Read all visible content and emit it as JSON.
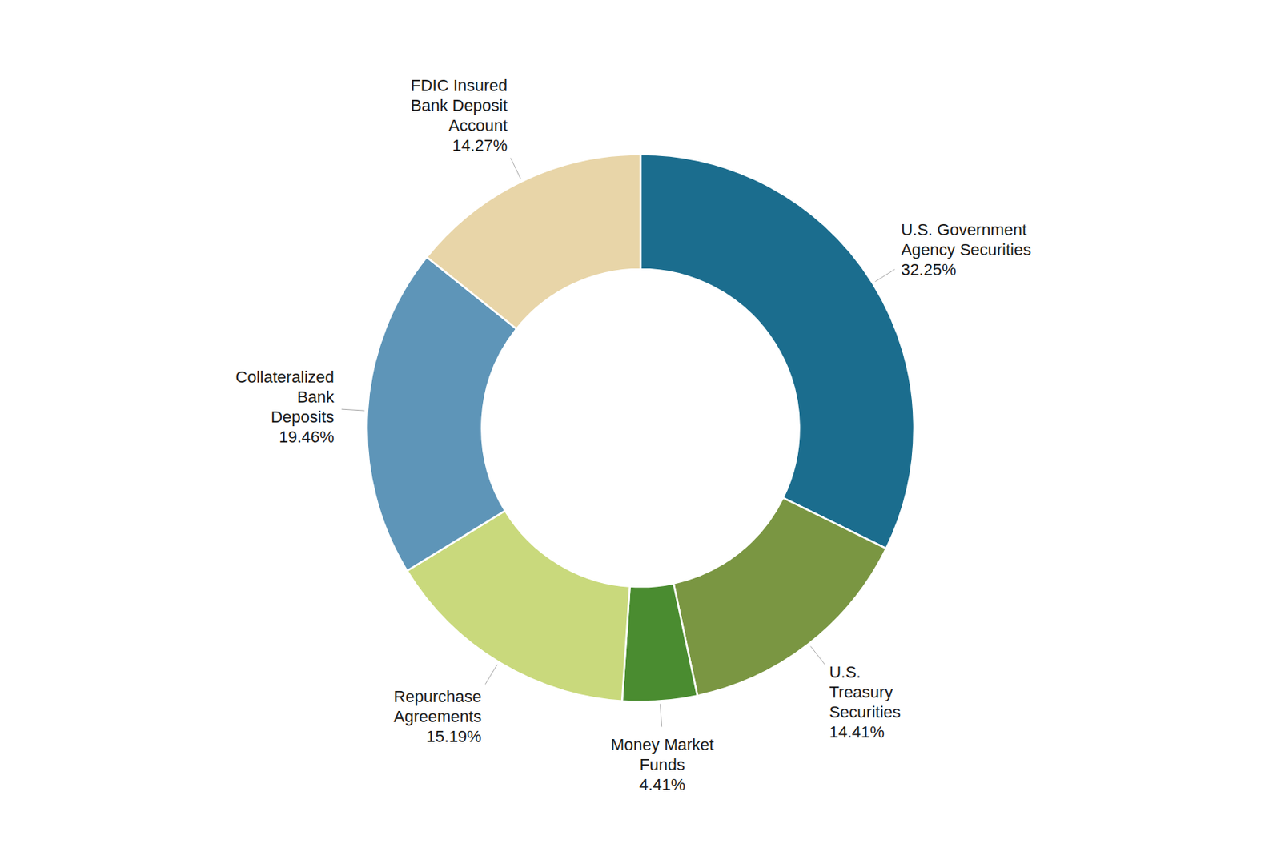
{
  "chart_data": {
    "type": "donut",
    "categories": [
      "U.S. Government\nAgency Securities",
      "U.S.\nTreasury\nSecurities",
      "Money Market\nFunds",
      "Repurchase\nAgreements",
      "Collateralized\nBank\nDeposits",
      "FDIC Insured\nBank Deposit\nAccount"
    ],
    "values": [
      32.25,
      14.41,
      4.41,
      15.19,
      19.46,
      14.27
    ],
    "value_labels": [
      "32.25%",
      "14.41%",
      "4.41%",
      "15.19%",
      "19.46%",
      "14.27%"
    ],
    "colors": [
      "#1b6d8e",
      "#7a9642",
      "#4a8c30",
      "#c9d97c",
      "#5e95b8",
      "#e8d5a8"
    ]
  }
}
